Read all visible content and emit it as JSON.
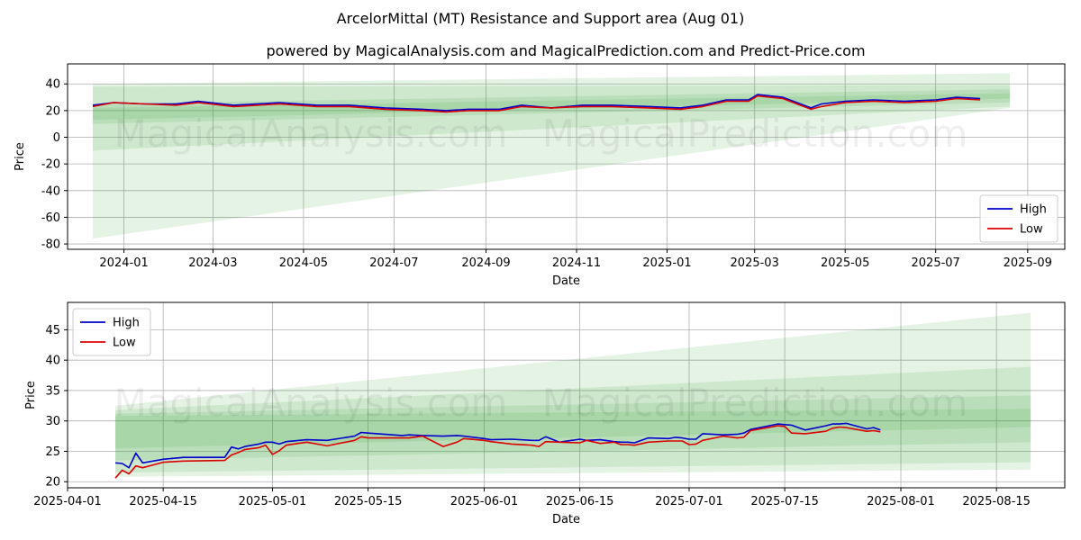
{
  "title": "ArcelorMittal (MT) Resistance and Support area (Aug 01)",
  "subtitle": "powered by MagicalAnalysis.com and MagicalPrediction.com and Predict-Price.com",
  "watermarks": [
    "MagicalAnalysis.com",
    "MagicalPrediction.com"
  ],
  "colors": {
    "high": "#0000cc",
    "low": "#dd0000",
    "band": "#2ca02c",
    "grid": "#b0b0b0"
  },
  "chart_data": [
    {
      "type": "line",
      "xlabel": "Date",
      "ylabel": "Price",
      "xlim": [
        "2023-11-24",
        "2025-09-26"
      ],
      "ylim": [
        -84,
        55
      ],
      "xticks": [
        "2024-01-01",
        "2024-03-01",
        "2024-05-01",
        "2024-07-01",
        "2024-09-01",
        "2024-11-01",
        "2025-01-01",
        "2025-03-01",
        "2025-05-01",
        "2025-07-01",
        "2025-09-01"
      ],
      "xticklabels": [
        "2024-01",
        "2024-03",
        "2024-05",
        "2024-07",
        "2024-09",
        "2024-11",
        "2025-01",
        "2025-03",
        "2025-05",
        "2025-07",
        "2025-09"
      ],
      "yticks": [
        -80,
        -60,
        -40,
        -20,
        0,
        20,
        40
      ],
      "grid": true,
      "legend": {
        "position": "lower-right",
        "entries": [
          "High",
          "Low"
        ]
      },
      "bands": [
        {
          "x": [
            "2023-12-11",
            "2025-08-20"
          ],
          "lower": [
            -76,
            22
          ],
          "upper": [
            40,
            48
          ]
        },
        {
          "x": [
            "2023-12-11",
            "2025-08-20"
          ],
          "lower": [
            -10,
            23
          ],
          "upper": [
            38,
            39
          ]
        },
        {
          "x": [
            "2023-12-11",
            "2025-08-20"
          ],
          "lower": [
            10,
            26
          ],
          "upper": [
            25,
            36
          ]
        },
        {
          "x": [
            "2023-12-11",
            "2025-08-20"
          ],
          "lower": [
            13,
            29
          ],
          "upper": [
            22,
            33
          ]
        }
      ],
      "x": [
        "2023-12-11",
        "2023-12-25",
        "2024-01-15",
        "2024-02-05",
        "2024-02-20",
        "2024-03-15",
        "2024-04-15",
        "2024-05-10",
        "2024-06-01",
        "2024-06-25",
        "2024-07-20",
        "2024-08-05",
        "2024-08-20",
        "2024-09-10",
        "2024-09-25",
        "2024-10-15",
        "2024-11-05",
        "2024-11-25",
        "2024-12-20",
        "2025-01-10",
        "2025-01-25",
        "2025-02-10",
        "2025-02-25",
        "2025-03-03",
        "2025-03-20",
        "2025-04-08",
        "2025-04-15",
        "2025-05-01",
        "2025-05-20",
        "2025-06-10",
        "2025-07-01",
        "2025-07-15",
        "2025-07-31"
      ],
      "series": [
        {
          "name": "High",
          "values": [
            24,
            26,
            25,
            25,
            27,
            24,
            26,
            24,
            24,
            22,
            21,
            20,
            21,
            21,
            24,
            22,
            24,
            24,
            23,
            22,
            24,
            28,
            28,
            32,
            30,
            22,
            25,
            27,
            28,
            27,
            28,
            30,
            29
          ]
        },
        {
          "name": "Low",
          "values": [
            23,
            26,
            25,
            24,
            26,
            23,
            25,
            23,
            23,
            21,
            20,
            19,
            20,
            20,
            23,
            22,
            23,
            23,
            22,
            21,
            23,
            27,
            27,
            31,
            29,
            21,
            23,
            26,
            27,
            26,
            27,
            29,
            28
          ]
        }
      ]
    },
    {
      "type": "line",
      "xlabel": "Date",
      "ylabel": "Price",
      "xlim": [
        "2025-04-01",
        "2025-08-25"
      ],
      "ylim": [
        19,
        49.5
      ],
      "xticks": [
        "2025-04-01",
        "2025-04-15",
        "2025-05-01",
        "2025-05-15",
        "2025-06-01",
        "2025-06-15",
        "2025-07-01",
        "2025-07-15",
        "2025-08-01",
        "2025-08-15"
      ],
      "xticklabels": [
        "2025-04-01",
        "2025-04-15",
        "2025-05-01",
        "2025-05-15",
        "2025-06-01",
        "2025-06-15",
        "2025-07-01",
        "2025-07-15",
        "2025-08-01",
        "2025-08-15"
      ],
      "yticks": [
        20,
        25,
        30,
        35,
        40,
        45
      ],
      "grid": true,
      "legend": {
        "position": "upper-left",
        "entries": [
          "High",
          "Low"
        ]
      },
      "bands": [
        {
          "x": [
            "2025-04-08",
            "2025-08-20"
          ],
          "lower": [
            20.8,
            22
          ],
          "upper": [
            32.5,
            47.8
          ]
        },
        {
          "x": [
            "2025-04-08",
            "2025-08-20"
          ],
          "lower": [
            21.5,
            23.2
          ],
          "upper": [
            31.8,
            38.9
          ]
        },
        {
          "x": [
            "2025-04-08",
            "2025-08-20"
          ],
          "lower": [
            23.5,
            26.5
          ],
          "upper": [
            31.2,
            34.2
          ]
        },
        {
          "x": [
            "2025-04-08",
            "2025-08-20"
          ],
          "lower": [
            25.5,
            29
          ],
          "upper": [
            30.8,
            32
          ]
        }
      ],
      "x": [
        "2025-04-08",
        "2025-04-09",
        "2025-04-10",
        "2025-04-11",
        "2025-04-12",
        "2025-04-15",
        "2025-04-18",
        "2025-04-24",
        "2025-04-25",
        "2025-04-26",
        "2025-04-27",
        "2025-04-29",
        "2025-04-30",
        "2025-05-01",
        "2025-05-02",
        "2025-05-03",
        "2025-05-06",
        "2025-05-09",
        "2025-05-13",
        "2025-05-14",
        "2025-05-15",
        "2025-05-20",
        "2025-05-21",
        "2025-05-23",
        "2025-05-26",
        "2025-05-28",
        "2025-05-29",
        "2025-06-01",
        "2025-06-02",
        "2025-06-05",
        "2025-06-08",
        "2025-06-09",
        "2025-06-10",
        "2025-06-12",
        "2025-06-15",
        "2025-06-16",
        "2025-06-18",
        "2025-06-20",
        "2025-06-21",
        "2025-06-22",
        "2025-06-23",
        "2025-06-25",
        "2025-06-28",
        "2025-06-29",
        "2025-06-30",
        "2025-07-01",
        "2025-07-02",
        "2025-07-03",
        "2025-07-06",
        "2025-07-08",
        "2025-07-09",
        "2025-07-10",
        "2025-07-14",
        "2025-07-15",
        "2025-07-16",
        "2025-07-18",
        "2025-07-21",
        "2025-07-22",
        "2025-07-23",
        "2025-07-24",
        "2025-07-27",
        "2025-07-28",
        "2025-07-29"
      ],
      "series": [
        {
          "name": "High",
          "values": [
            23.1,
            23.0,
            22.3,
            24.7,
            23.1,
            23.7,
            24.0,
            24.0,
            25.7,
            25.4,
            25.8,
            26.2,
            26.5,
            26.5,
            26.2,
            26.6,
            26.9,
            26.8,
            27.5,
            28.1,
            28.0,
            27.6,
            27.7,
            27.6,
            27.5,
            27.6,
            27.5,
            27.1,
            26.9,
            27.0,
            26.8,
            26.8,
            27.4,
            26.5,
            27.0,
            26.8,
            26.9,
            26.6,
            26.5,
            26.5,
            26.4,
            27.2,
            27.1,
            27.3,
            27.2,
            27.0,
            27.0,
            27.9,
            27.7,
            27.8,
            28.0,
            28.6,
            29.5,
            29.4,
            29.3,
            28.5,
            29.2,
            29.5,
            29.5,
            29.6,
            28.7,
            28.9,
            28.5
          ]
        },
        {
          "name": "Low",
          "values": [
            20.6,
            21.9,
            21.3,
            22.6,
            22.3,
            23.2,
            23.4,
            23.5,
            24.4,
            24.8,
            25.3,
            25.6,
            26.0,
            24.5,
            25.1,
            26.0,
            26.5,
            25.9,
            26.8,
            27.4,
            27.2,
            27.2,
            27.2,
            27.5,
            25.8,
            26.5,
            27.1,
            26.8,
            26.6,
            26.2,
            26.0,
            25.8,
            26.6,
            26.5,
            26.4,
            26.8,
            26.3,
            26.5,
            26.1,
            26.1,
            26.0,
            26.5,
            26.7,
            26.7,
            26.7,
            26.1,
            26.2,
            26.8,
            27.5,
            27.2,
            27.3,
            28.4,
            29.2,
            29.1,
            28.0,
            27.9,
            28.3,
            28.8,
            29.0,
            28.9,
            28.3,
            28.4,
            28.2
          ]
        }
      ]
    }
  ]
}
